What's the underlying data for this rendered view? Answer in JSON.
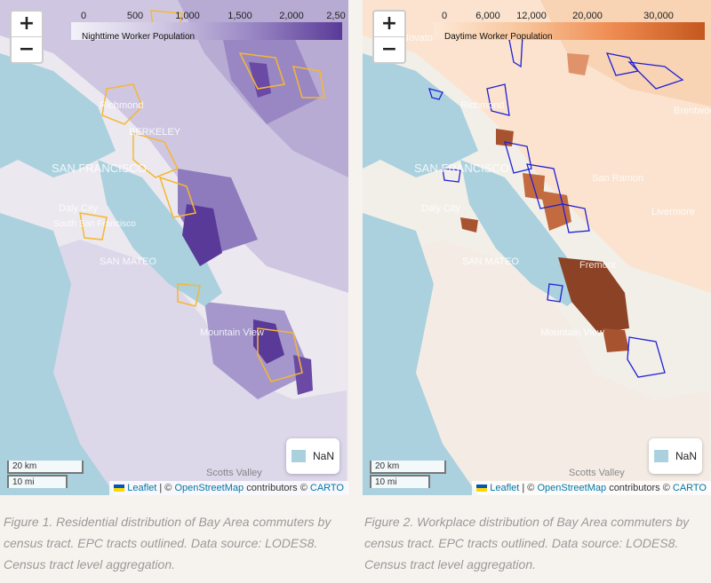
{
  "maps": [
    {
      "legend": {
        "ticks": [
          "0",
          "500",
          "1,000",
          "1,500",
          "2,000",
          "2,50"
        ],
        "label": "Nighttime Worker Population"
      },
      "zoom": {
        "in": "+",
        "out": "−"
      },
      "scale": {
        "km": "20 km",
        "mi": "10 mi"
      },
      "nan_label": "NaN",
      "attribution": {
        "leaflet": "Leaflet",
        "osm": "OpenStreetMap",
        "contrib": "contributors ©",
        "carto": "CARTO"
      },
      "place_labels": [
        "BERKELEY",
        "SAN FRANCISCO",
        "Richmond",
        "Daly City",
        "South San Francisco",
        "SAN MATEO",
        "Mountain View",
        "Scotts Valley"
      ],
      "colors": {
        "low": "#e8e4f1",
        "high": "#4b2a86",
        "outline": "#f5b731",
        "water": "#abd1de"
      }
    },
    {
      "legend": {
        "ticks": [
          "0",
          "6,000",
          "12,000",
          "20,000",
          "30,000"
        ],
        "label": "Daytime Worker Population"
      },
      "zoom": {
        "in": "+",
        "out": "−"
      },
      "scale": {
        "km": "20 km",
        "mi": "10 mi"
      },
      "nan_label": "NaN",
      "attribution": {
        "leaflet": "Leaflet",
        "osm": "OpenStreetMap",
        "contrib": "contributors ©",
        "carto": "CARTO"
      },
      "place_labels": [
        "Novato",
        "Richmond",
        "SAN FRANCISCO",
        "Daly City",
        "SAN MATEO",
        "San Ramon",
        "Livermore",
        "Fremont",
        "Brentwood",
        "Mountain View",
        "Scotts Valley"
      ],
      "colors": {
        "low": "#fde8d6",
        "high": "#7a3418",
        "outline": "#1f1fd6",
        "water": "#abd1de"
      }
    }
  ],
  "captions": [
    "Figure 1. Residential distribution of Bay Area commuters by census tract. EPC tracts outlined. Data source: LODES8. Census tract level aggregation.",
    "Figure 2. Workplace distribution of Bay Area commuters by census tract. EPC tracts outlined. Data source: LODES8. Census tract level aggregation."
  ]
}
